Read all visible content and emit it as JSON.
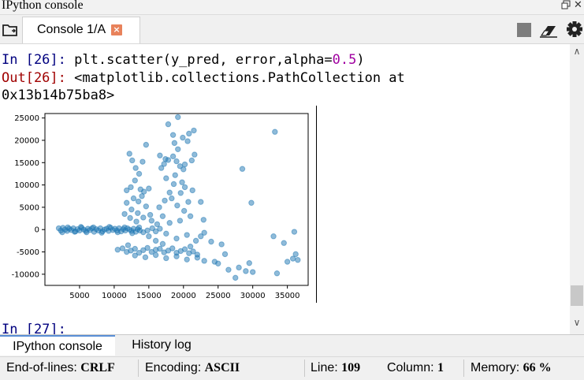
{
  "pane": {
    "title": "IPython console"
  },
  "tabs": [
    {
      "label": "Console 1/A",
      "close": "×"
    }
  ],
  "console": {
    "in_prompt": "In [26]: ",
    "in_code_pre": "plt.scatter(y_pred, error,alpha=",
    "in_code_num": "0.5",
    "in_code_post": ")",
    "out_prompt": "Out[26]: ",
    "out_line1": "<matplotlib.collections.PathCollection at",
    "out_line2": "0x13b14b75ba8>",
    "next_prompt": "In [27]:"
  },
  "chart_data": {
    "type": "scatter",
    "title": "",
    "xlabel": "",
    "ylabel": "",
    "xlim": [
      0,
      38000
    ],
    "ylim": [
      -12500,
      26000
    ],
    "xticks": [
      5000,
      10000,
      15000,
      20000,
      25000,
      30000,
      35000
    ],
    "yticks": [
      -10000,
      -5000,
      0,
      5000,
      10000,
      15000,
      20000,
      25000
    ],
    "alpha": 0.5,
    "color": "#1f77b4",
    "points": [
      [
        2000,
        300
      ],
      [
        2300,
        -200
      ],
      [
        2600,
        400
      ],
      [
        2900,
        0
      ],
      [
        3200,
        -300
      ],
      [
        3500,
        200
      ],
      [
        3800,
        -100
      ],
      [
        4100,
        300
      ],
      [
        4400,
        -400
      ],
      [
        4700,
        100
      ],
      [
        5000,
        -200
      ],
      [
        5300,
        400
      ],
      [
        5600,
        0
      ],
      [
        5900,
        -300
      ],
      [
        6200,
        200
      ],
      [
        6500,
        -100
      ],
      [
        6800,
        300
      ],
      [
        7100,
        -500
      ],
      [
        7400,
        100
      ],
      [
        7700,
        -200
      ],
      [
        8000,
        300
      ],
      [
        8300,
        -400
      ],
      [
        8600,
        0
      ],
      [
        8900,
        200
      ],
      [
        9200,
        -300
      ],
      [
        9500,
        400
      ],
      [
        9800,
        -100
      ],
      [
        10100,
        200
      ],
      [
        10400,
        -200
      ],
      [
        10700,
        300
      ],
      [
        11000,
        -400
      ],
      [
        11300,
        100
      ],
      [
        11600,
        -200
      ],
      [
        11900,
        300
      ],
      [
        12200,
        0
      ],
      [
        12500,
        -300
      ],
      [
        12800,
        200
      ],
      [
        13100,
        -500
      ],
      [
        13400,
        100
      ],
      [
        13700,
        -200
      ],
      [
        2500,
        -600
      ],
      [
        3300,
        500
      ],
      [
        4300,
        -500
      ],
      [
        5200,
        600
      ],
      [
        6000,
        -600
      ],
      [
        7000,
        500
      ],
      [
        8200,
        -700
      ],
      [
        9300,
        600
      ],
      [
        10500,
        -600
      ],
      [
        11500,
        500
      ],
      [
        12600,
        -800
      ],
      [
        13600,
        500
      ],
      [
        14200,
        -600
      ],
      [
        14800,
        -200
      ],
      [
        15500,
        300
      ],
      [
        16000,
        -400
      ],
      [
        16600,
        200
      ],
      [
        10500,
        -4500
      ],
      [
        11200,
        -4200
      ],
      [
        11800,
        -5000
      ],
      [
        12400,
        -4700
      ],
      [
        13000,
        -4300
      ],
      [
        13600,
        -5200
      ],
      [
        14200,
        -4600
      ],
      [
        14800,
        -4100
      ],
      [
        15400,
        -5000
      ],
      [
        16000,
        -4500
      ],
      [
        16600,
        -4300
      ],
      [
        17200,
        -5100
      ],
      [
        17800,
        -4700
      ],
      [
        18400,
        -4200
      ],
      [
        19000,
        -5200
      ],
      [
        19600,
        -4800
      ],
      [
        20200,
        -4400
      ],
      [
        20800,
        -5300
      ],
      [
        21400,
        -4900
      ],
      [
        22000,
        -5600
      ],
      [
        13000,
        -5800
      ],
      [
        14500,
        -6200
      ],
      [
        16000,
        -5700
      ],
      [
        17500,
        -6400
      ],
      [
        19000,
        -6000
      ],
      [
        20500,
        -6700
      ],
      [
        22000,
        -6300
      ],
      [
        12000,
        -3500
      ],
      [
        17000,
        -3200
      ],
      [
        21000,
        -3800
      ],
      [
        23000,
        -7000
      ],
      [
        25000,
        -7600
      ],
      [
        26500,
        -9000
      ],
      [
        28000,
        -8500
      ],
      [
        29000,
        -9300
      ],
      [
        29500,
        -7500
      ],
      [
        27500,
        -10800
      ],
      [
        30000,
        -9500
      ],
      [
        26000,
        -5500
      ],
      [
        24500,
        -7200
      ],
      [
        33500,
        -9800
      ],
      [
        35000,
        -7200
      ],
      [
        35800,
        -6500
      ],
      [
        36500,
        -6800
      ],
      [
        36200,
        -5500
      ],
      [
        36000,
        -500
      ],
      [
        33000,
        -1500
      ],
      [
        34500,
        -3000
      ],
      [
        12200,
        17000
      ],
      [
        12600,
        15500
      ],
      [
        13100,
        13800
      ],
      [
        13600,
        12500
      ],
      [
        14100,
        15200
      ],
      [
        14600,
        19000
      ],
      [
        13000,
        11000
      ],
      [
        12400,
        9500
      ],
      [
        11800,
        8800
      ],
      [
        13800,
        9000
      ],
      [
        14300,
        8500
      ],
      [
        15000,
        9200
      ],
      [
        12800,
        7000
      ],
      [
        13500,
        6300
      ],
      [
        14000,
        7500
      ],
      [
        11800,
        6000
      ],
      [
        12500,
        4500
      ],
      [
        13400,
        3700
      ],
      [
        14600,
        5200
      ],
      [
        15200,
        3300
      ],
      [
        11500,
        3500
      ],
      [
        12300,
        2600
      ],
      [
        13200,
        1800
      ],
      [
        14200,
        2700
      ],
      [
        15400,
        2000
      ],
      [
        16200,
        1200
      ],
      [
        17000,
        3000
      ],
      [
        16500,
        5000
      ],
      [
        17300,
        6500
      ],
      [
        18000,
        8300
      ],
      [
        17500,
        11500
      ],
      [
        16800,
        13800
      ],
      [
        17800,
        15600
      ],
      [
        18500,
        16400
      ],
      [
        19000,
        15300
      ],
      [
        19500,
        14200
      ],
      [
        18800,
        12200
      ],
      [
        19800,
        10600
      ],
      [
        20200,
        9500
      ],
      [
        18300,
        7000
      ],
      [
        19100,
        5400
      ],
      [
        20100,
        4200
      ],
      [
        21000,
        3000
      ],
      [
        19500,
        2000
      ],
      [
        18000,
        1500
      ],
      [
        20700,
        6200
      ],
      [
        20000,
        13500
      ],
      [
        21200,
        15500
      ],
      [
        19200,
        18000
      ],
      [
        18700,
        19400
      ],
      [
        19900,
        20600
      ],
      [
        20800,
        21500
      ],
      [
        21500,
        22200
      ],
      [
        18500,
        21200
      ],
      [
        17800,
        23600
      ],
      [
        19200,
        25200
      ],
      [
        20600,
        19800
      ],
      [
        21600,
        16800
      ],
      [
        20200,
        14600
      ],
      [
        17400,
        15800
      ],
      [
        16600,
        16600
      ],
      [
        17200,
        14700
      ],
      [
        18600,
        10200
      ],
      [
        19600,
        8200
      ],
      [
        21300,
        8800
      ],
      [
        22500,
        6200
      ],
      [
        22900,
        2200
      ],
      [
        23000,
        -700
      ],
      [
        21800,
        -2500
      ],
      [
        22500,
        -1500
      ],
      [
        24000,
        -2700
      ],
      [
        25500,
        -3300
      ],
      [
        19000,
        -2000
      ],
      [
        20500,
        -1200
      ],
      [
        17500,
        -900
      ],
      [
        16000,
        -2500
      ],
      [
        15000,
        -1500
      ],
      [
        28500,
        13600
      ],
      [
        29800,
        6000
      ],
      [
        33200,
        21900
      ]
    ]
  }
}
